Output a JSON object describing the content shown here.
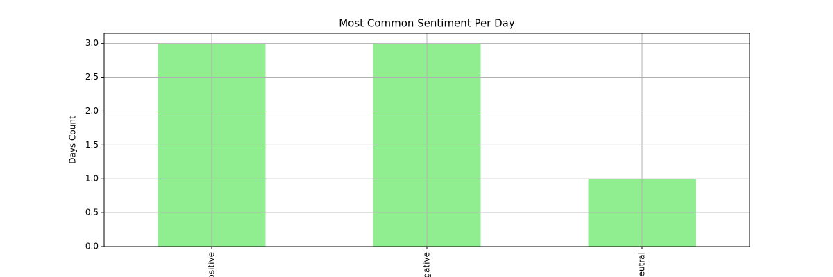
{
  "chart_data": {
    "type": "bar",
    "title": "Most Common Sentiment Per Day",
    "ylabel": "Days Count",
    "categories": [
      "Positive",
      "Negative",
      "Neutral"
    ],
    "values": [
      3,
      3,
      1
    ],
    "color": "#90ee90",
    "ylim": [
      0,
      3.15
    ],
    "yticks": [
      {
        "value": 0,
        "label": "0.0"
      },
      {
        "value": 0.5,
        "label": "0.5"
      },
      {
        "value": 1,
        "label": "1.0"
      },
      {
        "value": 1.5,
        "label": "1.5"
      },
      {
        "value": 2,
        "label": "2.0"
      },
      {
        "value": 2.5,
        "label": "2.5"
      },
      {
        "value": 3,
        "label": "3.0"
      }
    ],
    "grid": true
  }
}
